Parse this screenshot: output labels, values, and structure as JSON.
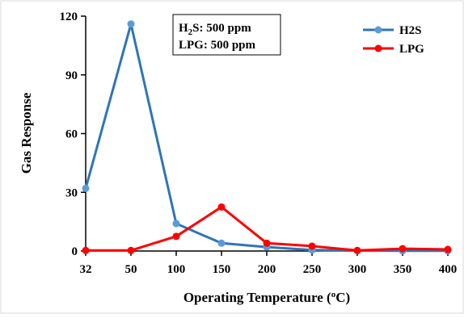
{
  "chart_data": {
    "type": "line",
    "categories": [
      "32",
      "50",
      "100",
      "150",
      "200",
      "250",
      "300",
      "350",
      "400"
    ],
    "series": [
      {
        "name": "H2S",
        "color": "#2e75b6",
        "marker_color": "#5b9bd5",
        "values": [
          32,
          116,
          14,
          4,
          2,
          0.5,
          0.2,
          0.1,
          0.1
        ]
      },
      {
        "name": "LPG",
        "color": "#ff0000",
        "marker_color": "#ff0000",
        "values": [
          0.3,
          0.3,
          7.5,
          22.5,
          4,
          2.5,
          0.3,
          1.2,
          0.8
        ]
      }
    ],
    "xlabel_main": "Operating Temperature (",
    "xlabel_sup": "o",
    "xlabel_end": "C)",
    "ylabel": "Gas Response",
    "ylim": [
      0,
      120
    ],
    "yticks": [
      0,
      30,
      60,
      90,
      120
    ],
    "legend_position": "top-right",
    "annotation": {
      "line1_prefix": "H",
      "line1_sub": "2",
      "line1_rest": "S:  500 ppm",
      "line2": "LPG: 500 ppm"
    }
  }
}
